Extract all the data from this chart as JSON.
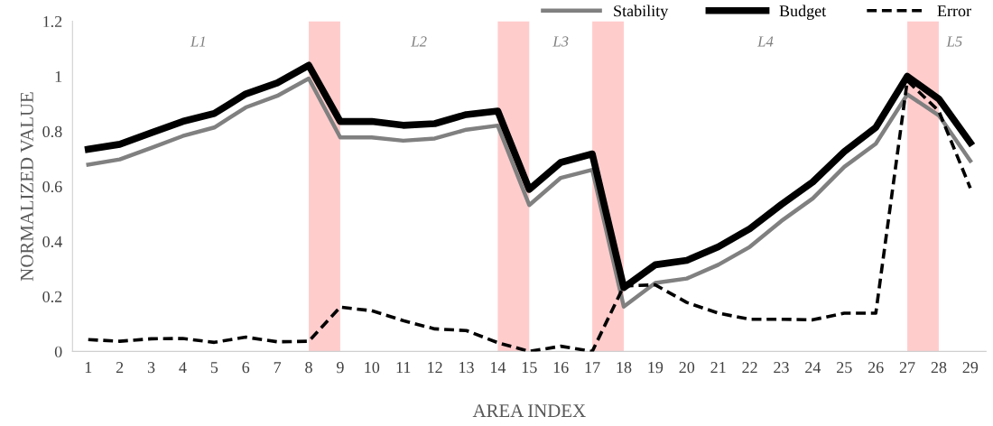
{
  "chart_data": {
    "type": "line",
    "xlabel": "AREA INDEX",
    "ylabel": "NORMALIZED VALUE",
    "categories": [
      "1",
      "2",
      "3",
      "4",
      "5",
      "6",
      "7",
      "8",
      "9",
      "10",
      "11",
      "12",
      "13",
      "14",
      "15",
      "16",
      "17",
      "18",
      "19",
      "20",
      "21",
      "22",
      "23",
      "24",
      "25",
      "26",
      "27",
      "28",
      "29"
    ],
    "series": [
      {
        "name": "Stability",
        "color": "#808080",
        "line_style": "solid",
        "values": [
          0.679,
          0.698,
          0.74,
          0.783,
          0.814,
          0.887,
          0.929,
          0.992,
          0.778,
          0.778,
          0.766,
          0.774,
          0.806,
          0.821,
          0.532,
          0.631,
          0.66,
          0.163,
          0.249,
          0.265,
          0.315,
          0.38,
          0.474,
          0.556,
          0.671,
          0.755,
          0.934,
          0.858,
          0.693
        ]
      },
      {
        "name": "Budget",
        "color": "#000000",
        "line_style": "solid",
        "values": [
          0.735,
          0.753,
          0.795,
          0.836,
          0.865,
          0.936,
          0.976,
          1.04,
          0.836,
          0.836,
          0.822,
          0.828,
          0.861,
          0.874,
          0.589,
          0.687,
          0.718,
          0.232,
          0.315,
          0.331,
          0.38,
          0.446,
          0.534,
          0.616,
          0.726,
          0.814,
          1.0,
          0.918,
          0.759
        ]
      },
      {
        "name": "Error",
        "color": "#000000",
        "line_style": "dashed",
        "values": [
          0.043,
          0.037,
          0.046,
          0.047,
          0.033,
          0.052,
          0.035,
          0.037,
          0.161,
          0.148,
          0.112,
          0.082,
          0.076,
          0.032,
          0.0,
          0.019,
          0.0,
          0.238,
          0.242,
          0.178,
          0.139,
          0.117,
          0.117,
          0.115,
          0.139,
          0.139,
          0.984,
          0.874,
          0.594
        ]
      }
    ],
    "ylim": [
      0,
      1.2
    ],
    "yticks": [
      0,
      0.2,
      0.4,
      0.6,
      0.8,
      1,
      1.2
    ],
    "bands": [
      {
        "axis": "x",
        "from": "8",
        "to": "9",
        "color": "#ffcccc"
      },
      {
        "axis": "x",
        "from": "14",
        "to": "15",
        "color": "#ffcccc"
      },
      {
        "axis": "x",
        "from": "17",
        "to": "18",
        "color": "#ffcccc"
      },
      {
        "axis": "x",
        "from": "27",
        "to": "28",
        "color": "#ffcccc"
      }
    ],
    "annotations": [
      "L1",
      "L2",
      "L3",
      "L4",
      "L5"
    ],
    "legend": "top right",
    "grid": false,
    "marker": "none"
  }
}
